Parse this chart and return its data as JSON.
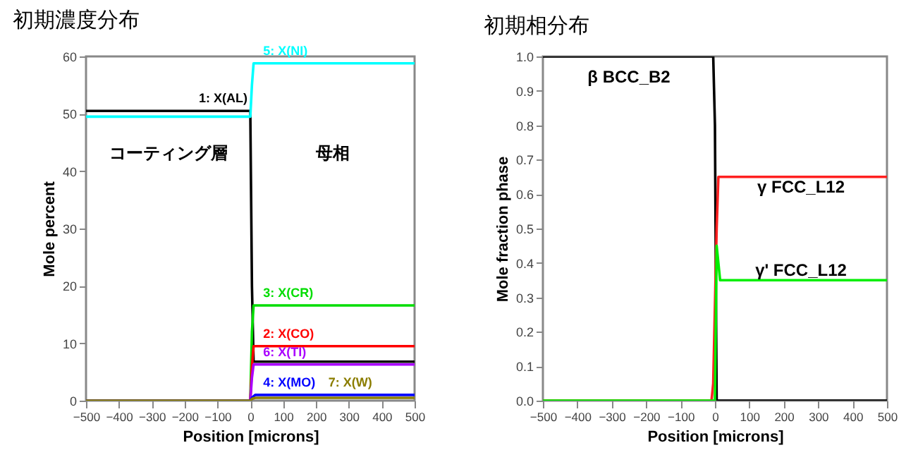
{
  "chart_data": [
    {
      "type": "line",
      "title": "初期濃度分布",
      "xlabel": "Position [microns]",
      "ylabel": "Mole percent",
      "xlim": [
        -500,
        500
      ],
      "ylim": [
        0,
        60
      ],
      "xticks": [
        -500,
        -400,
        -300,
        -200,
        -100,
        0,
        100,
        200,
        300,
        400,
        500
      ],
      "yticks": [
        0,
        10,
        20,
        30,
        40,
        50,
        60
      ],
      "grid": false,
      "legend": false,
      "marker": "none",
      "line_style": "solid",
      "annotations": [
        "コーティング層",
        "母相"
      ],
      "series": [
        {
          "name": "1: X(AL)",
          "color": "#000000",
          "x": [
            -500,
            0,
            5,
            10,
            500
          ],
          "values": [
            50.5,
            50.5,
            20,
            6.8,
            6.8
          ]
        },
        {
          "name": "5: X(NI)",
          "color": "#00ffff",
          "x": [
            -500,
            0,
            5,
            10,
            500
          ],
          "values": [
            49.5,
            49.5,
            55,
            58.8,
            58.8
          ]
        },
        {
          "name": "3: X(CR)",
          "color": "#00dd00",
          "x": [
            -500,
            0,
            5,
            10,
            500
          ],
          "values": [
            0,
            0,
            12,
            16.6,
            16.6
          ]
        },
        {
          "name": "2: X(CO)",
          "color": "#ff0000",
          "x": [
            -500,
            0,
            5,
            10,
            500
          ],
          "values": [
            0,
            0,
            6,
            9.5,
            9.5
          ]
        },
        {
          "name": "6: X(TI)",
          "color": "#aa00ff",
          "x": [
            -500,
            0,
            5,
            10,
            500
          ],
          "values": [
            0,
            0,
            4,
            6.3,
            6.3
          ]
        },
        {
          "name": "4: X(MO)",
          "color": "#0000ff",
          "x": [
            -500,
            0,
            5,
            15,
            500
          ],
          "values": [
            0,
            0,
            0.5,
            1.0,
            1.0
          ]
        },
        {
          "name": "7: X(W)",
          "color": "#8b7d00",
          "x": [
            -500,
            0,
            5,
            15,
            500
          ],
          "values": [
            0,
            0,
            0.3,
            0.5,
            0.5
          ]
        }
      ]
    },
    {
      "type": "line",
      "title": "初期相分布",
      "xlabel": "Position [microns]",
      "ylabel": "Mole fraction phase",
      "xlim": [
        -500,
        500
      ],
      "ylim": [
        0,
        1
      ],
      "xticks": [
        -500,
        -400,
        -300,
        -200,
        -100,
        0,
        100,
        200,
        300,
        400,
        500
      ],
      "yticks": [
        {
          "value": 0,
          "label": "0.0"
        },
        0.1,
        0.2,
        0.3,
        0.4,
        0.5,
        0.6,
        0.7,
        0.8,
        0.9,
        {
          "value": 1,
          "label": "1.0"
        }
      ],
      "grid": false,
      "legend": false,
      "marker": "none",
      "line_style": "solid",
      "annotations": [
        "β BCC_B2",
        "γ FCC_L12",
        "γ' FCC_L12"
      ],
      "series": [
        {
          "color": "#000000",
          "x": [
            -500,
            -5,
            0,
            3,
            5,
            500
          ],
          "values": [
            1,
            1,
            0.8,
            0.3,
            0,
            0
          ]
        },
        {
          "color": "#ff2020",
          "x": [
            -500,
            -10,
            -5,
            5,
            10,
            500
          ],
          "values": [
            0,
            0,
            0.05,
            0.5,
            0.65,
            0.65
          ]
        },
        {
          "color": "#00ee00",
          "x": [
            -500,
            0,
            5,
            15,
            500
          ],
          "values": [
            0,
            0,
            0.45,
            0.35,
            0.35
          ]
        }
      ]
    }
  ]
}
